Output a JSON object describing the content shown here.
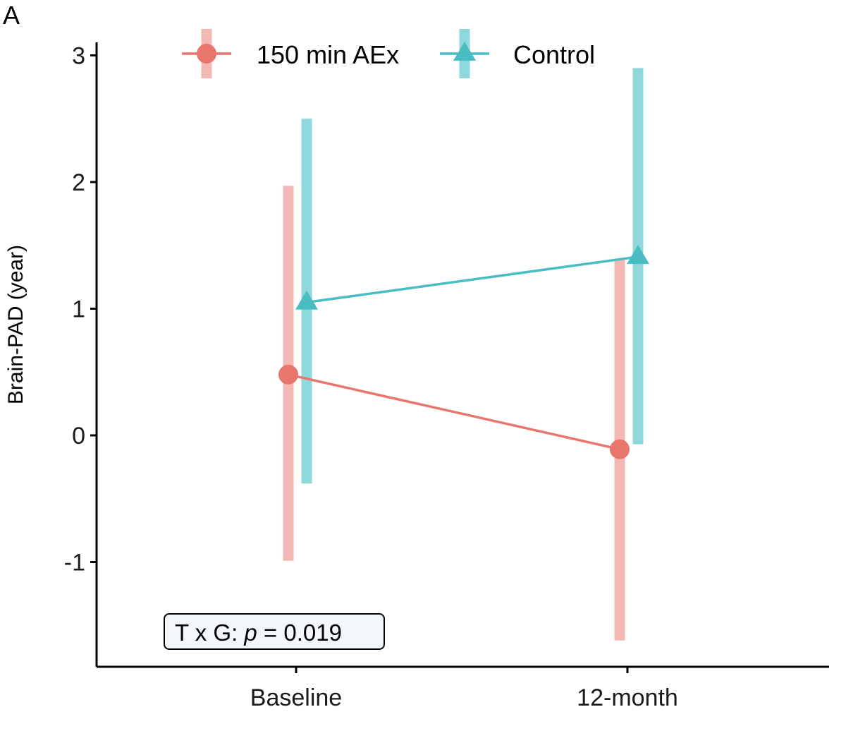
{
  "chart_data": {
    "type": "line",
    "panel_label": "A",
    "title": "",
    "xlabel": "",
    "ylabel": "Brain-PAD (year)",
    "categories": [
      "Baseline",
      "12-month"
    ],
    "ylim": [
      -1.75,
      3.25
    ],
    "yticks": [
      -1,
      0,
      1,
      2,
      3
    ],
    "ytick_labels": [
      "-1",
      "0",
      "1",
      "2",
      "3"
    ],
    "grid": false,
    "legend_position": "top",
    "series": [
      {
        "name": "150 min AEx",
        "marker": "circle",
        "color": "#E8766D",
        "errorbar_color": "#F2B8B3",
        "values": [
          0.48,
          -0.11
        ],
        "lower": [
          -0.99,
          -1.62
        ],
        "upper": [
          1.97,
          1.39
        ]
      },
      {
        "name": "Control",
        "marker": "triangle",
        "color": "#48BDC2",
        "errorbar_color": "#8ED8DB",
        "values": [
          1.05,
          1.41
        ],
        "lower": [
          -0.38,
          -0.07
        ],
        "upper": [
          2.5,
          2.9
        ]
      }
    ],
    "annotation": {
      "prefix": "T x G: ",
      "p_symbol": "p",
      "suffix": " = 0.019"
    }
  }
}
